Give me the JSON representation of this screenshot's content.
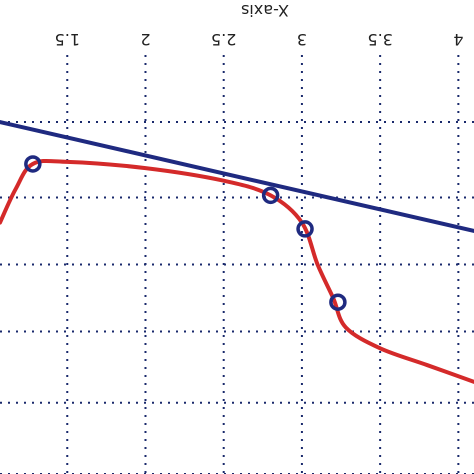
{
  "chart_data": {
    "type": "line",
    "xlabel": "X-axis",
    "x_axis_position": "top",
    "xlim": [
      1.07,
      4.1
    ],
    "ylim": [
      0,
      1
    ],
    "x_ticks": [
      1.5,
      2,
      2.5,
      3,
      3.5,
      4
    ],
    "x_tick_labels": [
      "1.5",
      "2",
      "2.5",
      "3",
      "3.5",
      "4"
    ],
    "y_gridlines": [
      0.0,
      0.17,
      0.34,
      0.5,
      0.66,
      0.84
    ],
    "grid": true,
    "grid_style": "dotted",
    "colors": {
      "blue_series": "#1f2a80",
      "red_series": "#d42a2a",
      "grid": "#1a2a6c",
      "markers": "#1f2a80"
    },
    "series": [
      {
        "color": "#1f2a80",
        "x": [
          1.07,
          4.1
        ],
        "y": [
          0.84,
          0.58
        ]
      },
      {
        "color": "#d42a2a",
        "x": [
          1.07,
          1.17,
          1.28,
          1.5,
          2.0,
          2.5,
          2.8,
          3.0,
          3.1,
          3.2,
          3.28,
          3.5,
          3.8,
          4.1
        ],
        "y": [
          0.6,
          0.68,
          0.74,
          0.745,
          0.73,
          0.7,
          0.665,
          0.6,
          0.5,
          0.42,
          0.35,
          0.3,
          0.26,
          0.22
        ]
      }
    ],
    "markers": [
      {
        "x": 1.28,
        "y": 0.74
      },
      {
        "x": 2.8,
        "y": 0.665
      },
      {
        "x": 3.02,
        "y": 0.585
      },
      {
        "x": 3.23,
        "y": 0.41
      }
    ]
  }
}
